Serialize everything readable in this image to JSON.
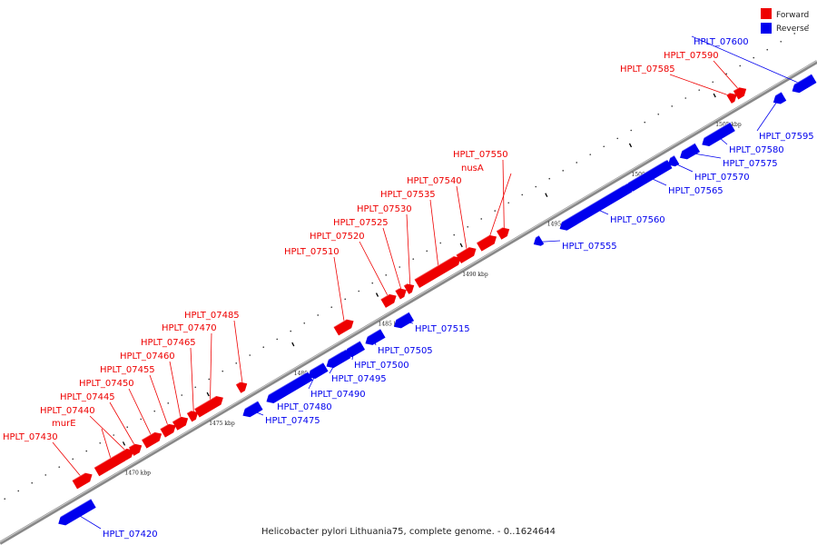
{
  "caption": "Helicobacter pylori Lithuania75, complete genome. - 0..1624644",
  "legend": [
    {
      "label": "Forward",
      "color": "#ee0000"
    },
    {
      "label": "Reverse",
      "color": "#0000ee"
    }
  ],
  "colors": {
    "forward": "#ee0000",
    "reverse": "#0000ee",
    "backbone": "#888888"
  },
  "ticks": [
    "1470 kbp",
    "1475 kbp",
    "1480 kbp",
    "1485 kbp",
    "1490 kbp",
    "1495 kbp",
    "1500 kbp",
    "1505 kbp"
  ],
  "genes": [
    {
      "name": "HPLT_07420",
      "strand": "reverse"
    },
    {
      "name": "HPLT_07430",
      "strand": "forward"
    },
    {
      "name": "murE",
      "strand": "forward"
    },
    {
      "name": "HPLT_07440",
      "strand": "forward"
    },
    {
      "name": "HPLT_07445",
      "strand": "forward"
    },
    {
      "name": "HPLT_07450",
      "strand": "forward"
    },
    {
      "name": "HPLT_07455",
      "strand": "forward"
    },
    {
      "name": "HPLT_07460",
      "strand": "forward"
    },
    {
      "name": "HPLT_07465",
      "strand": "forward"
    },
    {
      "name": "HPLT_07470",
      "strand": "forward"
    },
    {
      "name": "HPLT_07475",
      "strand": "reverse"
    },
    {
      "name": "HPLT_07480",
      "strand": "reverse"
    },
    {
      "name": "HPLT_07485",
      "strand": "forward"
    },
    {
      "name": "HPLT_07490",
      "strand": "reverse"
    },
    {
      "name": "HPLT_07495",
      "strand": "reverse"
    },
    {
      "name": "HPLT_07500",
      "strand": "reverse"
    },
    {
      "name": "HPLT_07505",
      "strand": "reverse"
    },
    {
      "name": "HPLT_07510",
      "strand": "forward"
    },
    {
      "name": "HPLT_07515",
      "strand": "reverse"
    },
    {
      "name": "HPLT_07520",
      "strand": "forward"
    },
    {
      "name": "HPLT_07525",
      "strand": "forward"
    },
    {
      "name": "HPLT_07530",
      "strand": "forward"
    },
    {
      "name": "HPLT_07535",
      "strand": "forward"
    },
    {
      "name": "HPLT_07540",
      "strand": "forward"
    },
    {
      "name": "nusA",
      "strand": "forward"
    },
    {
      "name": "HPLT_07550",
      "strand": "forward"
    },
    {
      "name": "HPLT_07555",
      "strand": "reverse"
    },
    {
      "name": "HPLT_07560",
      "strand": "reverse"
    },
    {
      "name": "HPLT_07565",
      "strand": "reverse"
    },
    {
      "name": "HPLT_07570",
      "strand": "reverse"
    },
    {
      "name": "HPLT_07575",
      "strand": "reverse"
    },
    {
      "name": "HPLT_07580",
      "strand": "reverse"
    },
    {
      "name": "HPLT_07585",
      "strand": "forward"
    },
    {
      "name": "HPLT_07590",
      "strand": "forward"
    },
    {
      "name": "HPLT_07595",
      "strand": "reverse"
    },
    {
      "name": "HPLT_07600",
      "strand": "reverse"
    }
  ]
}
